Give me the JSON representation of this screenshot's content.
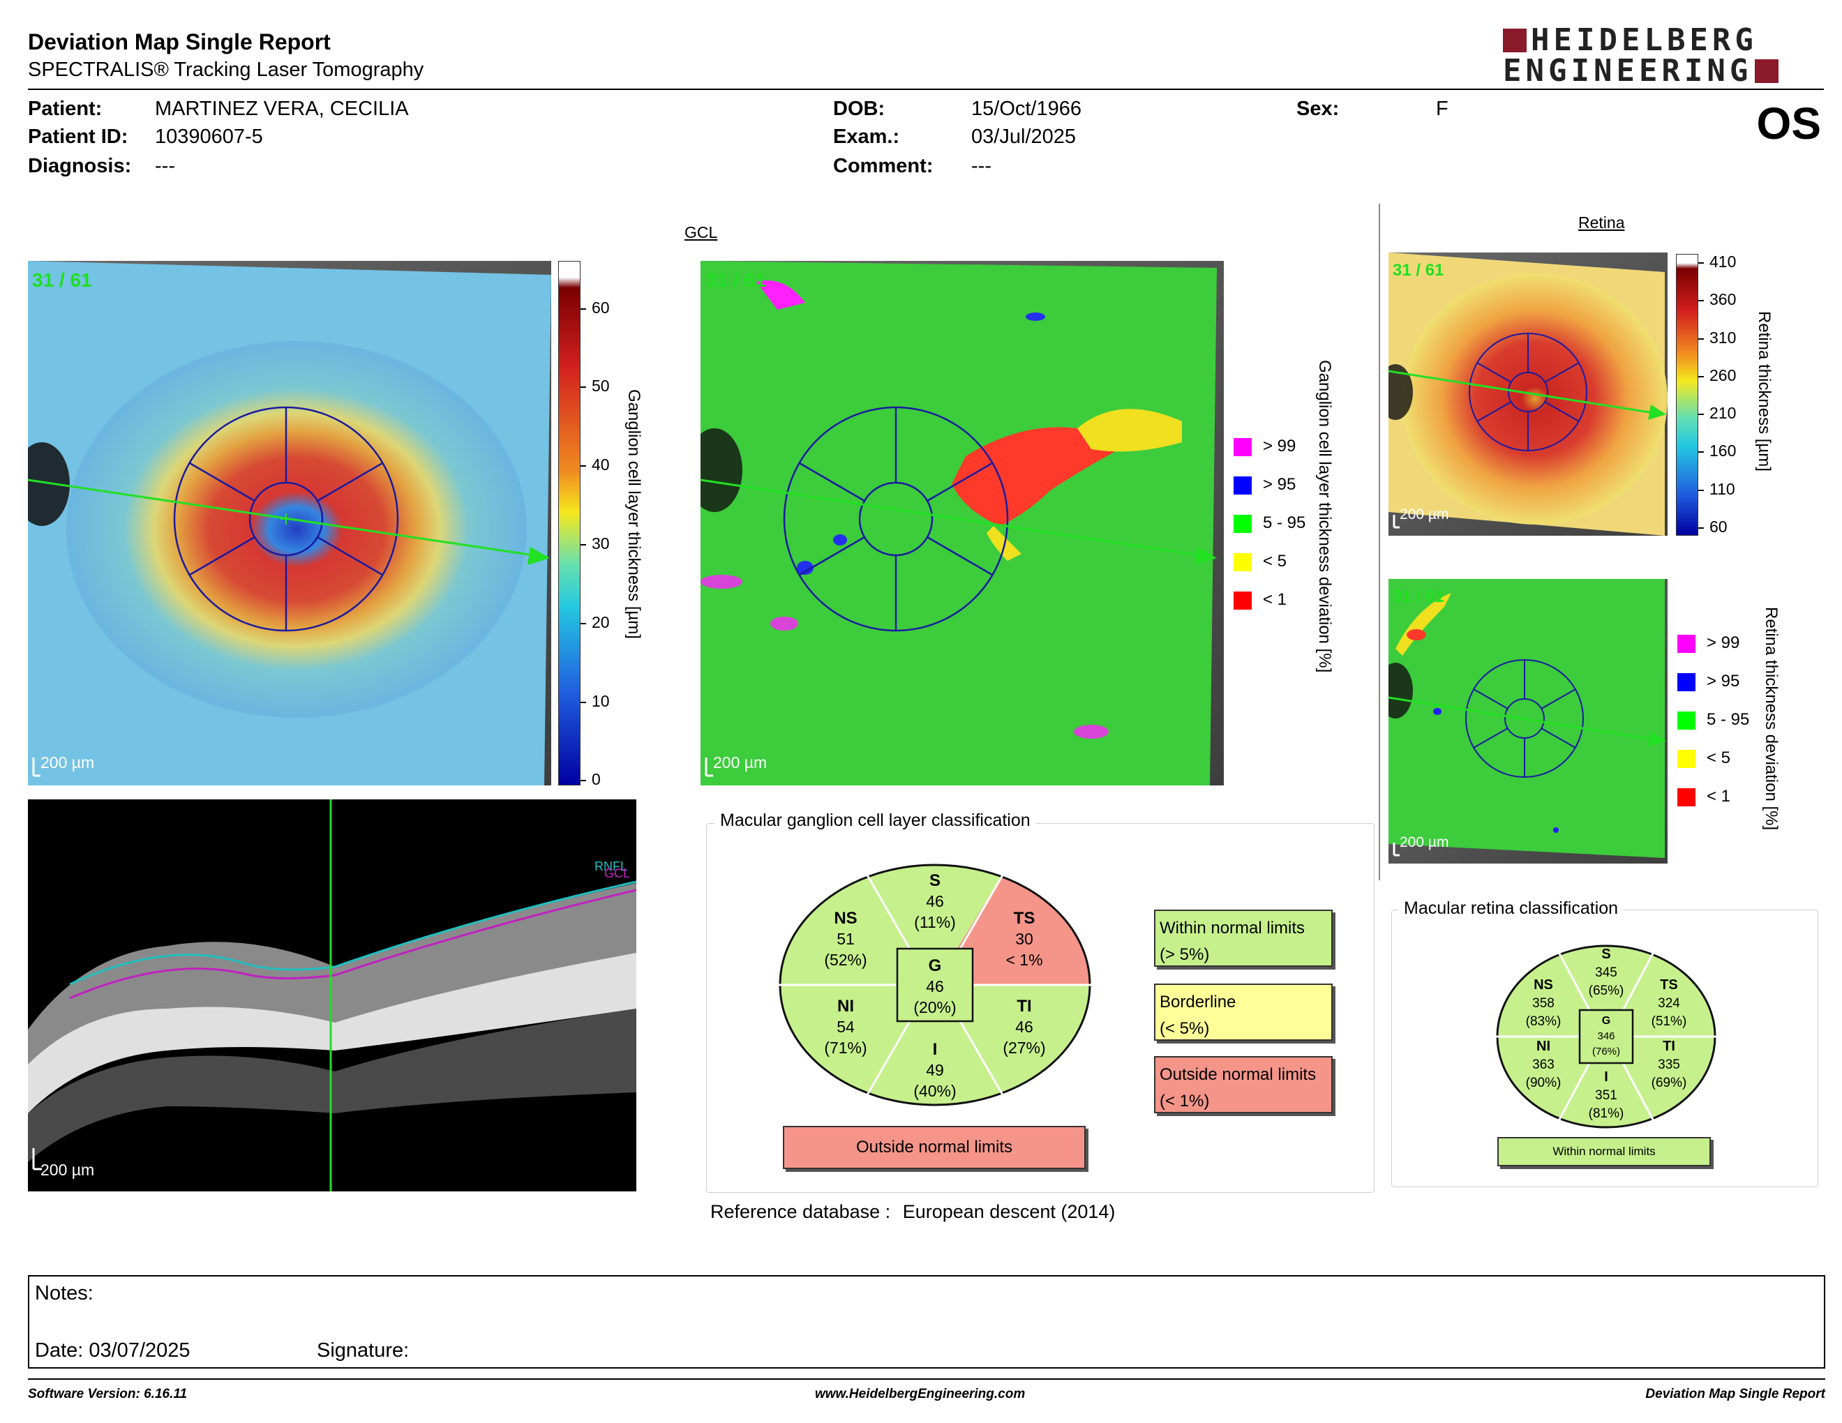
{
  "header": {
    "title": "Deviation Map Single Report",
    "subtitle": "SPECTRALIS® Tracking Laser Tomography",
    "logo_line1": "HEIDELBERG",
    "logo_line2": "ENGINEERING",
    "eye": "OS"
  },
  "patient": {
    "patient_label": "Patient:",
    "patient_value": "MARTINEZ VERA, CECILIA",
    "id_label": "Patient ID:",
    "id_value": "10390607-5",
    "diagnosis_label": "Diagnosis:",
    "diagnosis_value": "---",
    "dob_label": "DOB:",
    "dob_value": "15/Oct/1966",
    "exam_label": "Exam.:",
    "exam_value": "03/Jul/2025",
    "comment_label": "Comment:",
    "comment_value": "---",
    "sex_label": "Sex:",
    "sex_value": "F"
  },
  "gcl": {
    "section_label": "GCL",
    "badge": "31 / 61",
    "scale": "200 µm",
    "thickness_axis": "Ganglion cell layer thickness [µm]",
    "thickness_ticks": [
      "60",
      "50",
      "40",
      "30",
      "20",
      "10",
      "0"
    ],
    "deviation_axis": "Ganglion cell layer thickness deviation [%]",
    "legend": [
      {
        "label": "> 99",
        "color": "#ff00ff"
      },
      {
        "label": "> 95",
        "color": "#0000ff"
      },
      {
        "label": "5 - 95",
        "color": "#00ff00"
      },
      {
        "label": "< 5",
        "color": "#ffff00"
      },
      {
        "label": "< 1",
        "color": "#ff0000"
      }
    ]
  },
  "retina": {
    "section_label": "Retina",
    "badge": "31 / 61",
    "scale": "200 µm",
    "thickness_axis": "Retina thickness [µm]",
    "thickness_ticks": [
      "410",
      "360",
      "310",
      "260",
      "210",
      "160",
      "110",
      "60"
    ],
    "deviation_axis": "Retina thickness deviation [%]",
    "legend": [
      {
        "label": "> 99",
        "color": "#ff00ff"
      },
      {
        "label": "> 95",
        "color": "#0000ff"
      },
      {
        "label": "5 - 95",
        "color": "#00ff00"
      },
      {
        "label": "< 5",
        "color": "#ffff00"
      },
      {
        "label": "< 1",
        "color": "#ff0000"
      }
    ]
  },
  "bscan": {
    "layer_label_1": "RNFL",
    "layer_label_2": "GCL",
    "scale": "200 µm"
  },
  "gcl_classification": {
    "title": "Macular ganglion cell layer classification",
    "sectors": {
      "S": {
        "name": "S",
        "value": "46",
        "pct": "(11%)"
      },
      "NS": {
        "name": "NS",
        "value": "51",
        "pct": "(52%)"
      },
      "TS": {
        "name": "TS",
        "value": "30",
        "pct": "< 1%"
      },
      "G": {
        "name": "G",
        "value": "46",
        "pct": "(20%)"
      },
      "NI": {
        "name": "NI",
        "value": "54",
        "pct": "(71%)"
      },
      "TI": {
        "name": "TI",
        "value": "46",
        "pct": "(27%)"
      },
      "I": {
        "name": "I",
        "value": "49",
        "pct": "(40%)"
      }
    },
    "result": "Outside normal limits",
    "key_within_1": "Within normal limits",
    "key_within_2": "(> 5%)",
    "key_border_1": "Borderline",
    "key_border_2": "(< 5%)",
    "key_outside_1": "Outside normal limits",
    "key_outside_2": "(< 1%)",
    "colors": {
      "within": "#c6f08c",
      "borderline": "#ffff99",
      "outside": "#f5958a"
    }
  },
  "reference": {
    "label": "Reference database :",
    "value": "European descent (2014)"
  },
  "retina_classification": {
    "title": "Macular retina classification",
    "sectors": {
      "S": {
        "name": "S",
        "value": "345",
        "pct": "(65%)"
      },
      "NS": {
        "name": "NS",
        "value": "358",
        "pct": "(83%)"
      },
      "TS": {
        "name": "TS",
        "value": "324",
        "pct": "(51%)"
      },
      "G": {
        "name": "G",
        "value": "346",
        "pct": "(76%)"
      },
      "NI": {
        "name": "NI",
        "value": "363",
        "pct": "(90%)"
      },
      "TI": {
        "name": "TI",
        "value": "335",
        "pct": "(69%)"
      },
      "I": {
        "name": "I",
        "value": "351",
        "pct": "(81%)"
      }
    },
    "result": "Within normal limits"
  },
  "notes": {
    "notes_label": "Notes:",
    "date_label": "Date: 03/07/2025",
    "signature_label": "Signature:"
  },
  "footer": {
    "software": "Software Version: 6.16.11",
    "website": "www.HeidelbergEngineering.com",
    "report": "Deviation Map Single Report"
  }
}
